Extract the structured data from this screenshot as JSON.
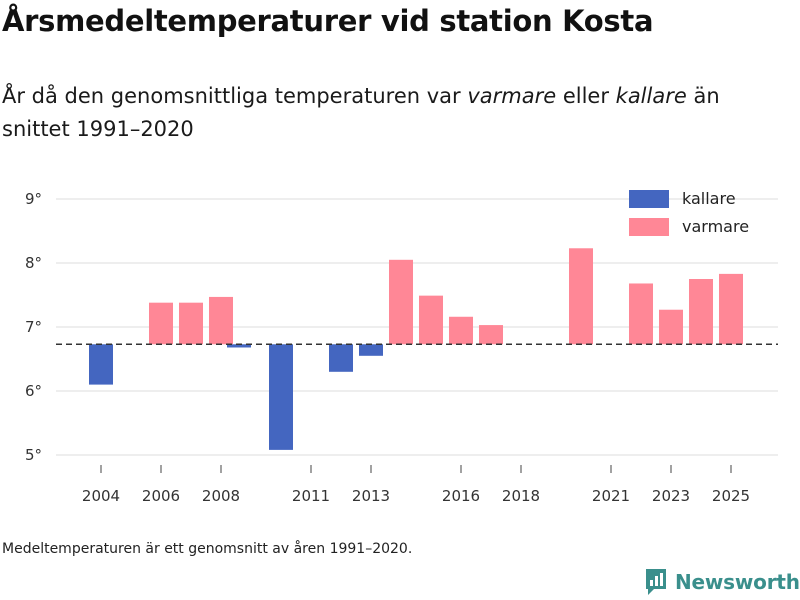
{
  "title": "Årsmedeltemperaturer vid station Kosta",
  "subtitle": {
    "part1": "År då den genomsnittliga temperaturen var ",
    "warmer": "varmare",
    "part2": " eller ",
    "colder": "kallare",
    "part3": " än snittet 1991–2020"
  },
  "footnote": "Medeltemperaturen är ett genomsnitt av åren 1991–2020.",
  "brand": {
    "name": "Newsworthy",
    "color": "#3a8f8c"
  },
  "colors": {
    "colder": "#4466c0",
    "warmer": "#ff8796",
    "grid": "#dddddd",
    "reference_line": "#333333"
  },
  "chart_data": {
    "type": "bar",
    "title": "Årsmedeltemperaturer vid station Kosta",
    "xlabel": "",
    "ylabel": "",
    "baseline": 6.73,
    "baseline_description": "Medeltemperatur 1991–2020",
    "ylim": [
      4.8,
      9.2
    ],
    "yticks": [
      5,
      6,
      7,
      8,
      9
    ],
    "ytick_labels": [
      "5°",
      "6°",
      "7°",
      "8°",
      "9°"
    ],
    "xlim": [
      2003,
      2026
    ],
    "xticks": [
      2004,
      2006,
      2008,
      2011,
      2013,
      2016,
      2018,
      2021,
      2023,
      2025
    ],
    "xtick_labels": [
      "2004",
      "2006",
      "2008",
      "2011",
      "2013",
      "2016",
      "2018",
      "2021",
      "2023",
      "2025"
    ],
    "legend": [
      {
        "key": "colder",
        "label": "kallare"
      },
      {
        "key": "warmer",
        "label": "varmare"
      }
    ],
    "legend_position": "top-right",
    "series": [
      {
        "name": "kallare",
        "key": "colder",
        "points": [
          {
            "year": 2004,
            "value": 6.1
          },
          {
            "year": 2008.6,
            "value": 6.68
          },
          {
            "year": 2010,
            "value": 5.08
          },
          {
            "year": 2012,
            "value": 6.3
          },
          {
            "year": 2013,
            "value": 6.55
          }
        ]
      },
      {
        "name": "varmare",
        "key": "warmer",
        "points": [
          {
            "year": 2006,
            "value": 7.38
          },
          {
            "year": 2007,
            "value": 7.38
          },
          {
            "year": 2008,
            "value": 7.47
          },
          {
            "year": 2014,
            "value": 8.05
          },
          {
            "year": 2015,
            "value": 7.49
          },
          {
            "year": 2016,
            "value": 7.16
          },
          {
            "year": 2017,
            "value": 7.03
          },
          {
            "year": 2020,
            "value": 8.23
          },
          {
            "year": 2022,
            "value": 7.68
          },
          {
            "year": 2023,
            "value": 7.27
          },
          {
            "year": 2024,
            "value": 7.75
          },
          {
            "year": 2025,
            "value": 7.83
          }
        ]
      }
    ]
  }
}
